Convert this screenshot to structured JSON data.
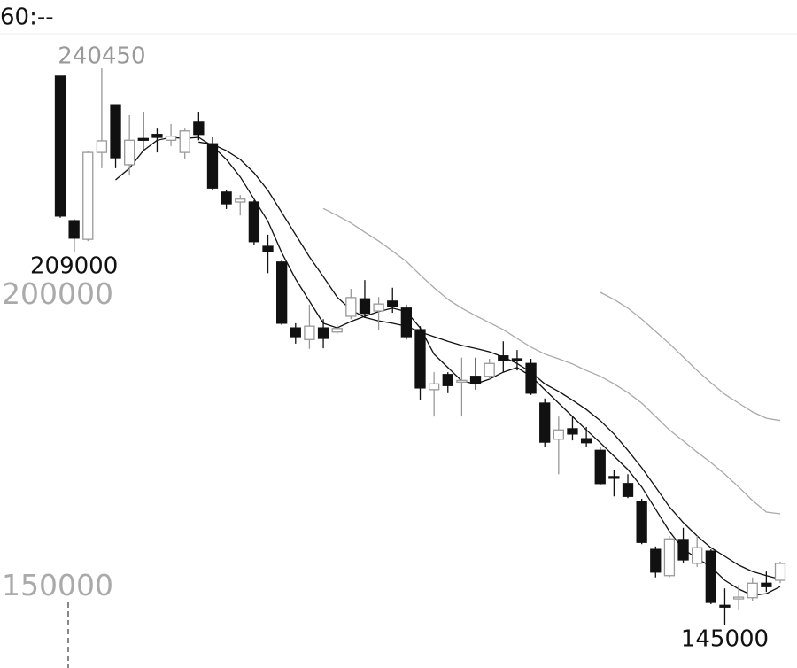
{
  "chart_data": {
    "type": "candlestick",
    "title": "60:--",
    "ylim": [
      139680,
      246080
    ],
    "yticks": [
      150000,
      200000
    ],
    "up_color": "#999999",
    "down_color": "#111111",
    "open": [
      239100,
      214300,
      211100,
      226000,
      234200,
      223900,
      228400,
      229100,
      228100,
      226000,
      231200,
      227500,
      219200,
      217500,
      217500,
      209900,
      207200,
      195900,
      193900,
      195900,
      195200,
      197900,
      200900,
      198800,
      200500,
      199300,
      195600,
      185300,
      187900,
      186600,
      187600,
      187600,
      191100,
      190600,
      189800,
      183000,
      176800,
      178600,
      176900,
      174900,
      170400,
      169200,
      166100,
      157900,
      153400,
      159600,
      155500,
      157600,
      148300,
      149400,
      149600,
      152100,
      152600
    ],
    "high": [
      239100,
      214600,
      226300,
      240450,
      234200,
      232400,
      233000,
      230100,
      230900,
      230100,
      233000,
      228600,
      219500,
      218700,
      217800,
      211900,
      207500,
      196700,
      199900,
      197400,
      196400,
      202600,
      204100,
      201200,
      202800,
      199900,
      196200,
      188300,
      188300,
      190800,
      190800,
      190600,
      193600,
      192100,
      190600,
      183800,
      180700,
      180700,
      178900,
      175400,
      171600,
      170800,
      166600,
      158400,
      160200,
      161600,
      160200,
      157900,
      151200,
      151800,
      153100,
      154100,
      155800
    ],
    "low": [
      214800,
      209000,
      210800,
      223300,
      223300,
      222100,
      226300,
      226000,
      227100,
      224800,
      228100,
      219500,
      216300,
      215200,
      210200,
      205300,
      196400,
      193200,
      192300,
      192400,
      194900,
      197400,
      197600,
      195600,
      198500,
      193900,
      183500,
      180700,
      184700,
      180700,
      185300,
      187100,
      188300,
      188600,
      184400,
      175400,
      170800,
      176600,
      175400,
      168900,
      167000,
      166700,
      158800,
      153100,
      153100,
      155500,
      154900,
      148500,
      145000,
      147600,
      149100,
      150600,
      152100
    ],
    "close": [
      215100,
      211300,
      226000,
      228000,
      225100,
      228100,
      228100,
      228600,
      228800,
      229700,
      229100,
      219900,
      217200,
      218000,
      210700,
      209000,
      196700,
      194400,
      196200,
      194100,
      195800,
      201100,
      198400,
      200000,
      199600,
      194400,
      185600,
      186300,
      186000,
      186900,
      186300,
      189800,
      190300,
      190300,
      184700,
      176300,
      178400,
      177700,
      176200,
      169200,
      170100,
      167000,
      159100,
      154000,
      159700,
      156100,
      158200,
      148800,
      148000,
      149700,
      152100,
      151500,
      155500
    ],
    "lines": [
      {
        "color": "#111111",
        "values": [
          null,
          null,
          null,
          null,
          221300,
          223300,
          226300,
          228100,
          228600,
          228400,
          228600,
          227100,
          224800,
          221800,
          218000,
          214200,
          208800,
          204300,
          200500,
          196700,
          195900,
          197000,
          197900,
          198700,
          199300,
          198700,
          195900,
          191400,
          189100,
          186800,
          186300,
          187100,
          188300,
          189100,
          187600,
          185300,
          183000,
          180700,
          178400,
          176200,
          173900,
          171600,
          168600,
          164800,
          161000,
          157900,
          156400,
          154900,
          152600,
          151100,
          150000,
          150300,
          151500
        ]
      },
      {
        "color": "#111111",
        "values": [
          null,
          null,
          null,
          null,
          null,
          null,
          null,
          null,
          null,
          null,
          227800,
          227400,
          226300,
          224800,
          222500,
          219500,
          215700,
          211900,
          208100,
          204700,
          201200,
          199000,
          197700,
          197100,
          196700,
          196200,
          195200,
          194400,
          193600,
          192900,
          192400,
          191800,
          190900,
          189800,
          188300,
          186300,
          185000,
          183500,
          181900,
          180000,
          177700,
          174900,
          171900,
          168600,
          165200,
          162500,
          160200,
          158200,
          156700,
          155200,
          154100,
          153400,
          152800
        ]
      },
      {
        "color": "#aaaaaa",
        "values": [
          null,
          null,
          null,
          null,
          null,
          null,
          null,
          null,
          null,
          null,
          null,
          null,
          null,
          null,
          null,
          null,
          null,
          null,
          null,
          216400,
          215200,
          213900,
          212300,
          210800,
          209100,
          207300,
          205000,
          202800,
          200800,
          199300,
          198000,
          196800,
          195600,
          194100,
          192600,
          191400,
          190600,
          189700,
          188600,
          187600,
          186300,
          184800,
          183000,
          180700,
          178400,
          176500,
          174600,
          172800,
          170800,
          168600,
          166300,
          164300,
          164000
        ]
      },
      {
        "color": "#aaaaaa",
        "values": [
          null,
          null,
          null,
          null,
          null,
          null,
          null,
          null,
          null,
          null,
          null,
          null,
          null,
          null,
          null,
          null,
          null,
          null,
          null,
          null,
          null,
          null,
          null,
          null,
          null,
          null,
          null,
          null,
          null,
          null,
          null,
          null,
          null,
          null,
          null,
          null,
          null,
          null,
          null,
          202000,
          200800,
          199300,
          197400,
          195300,
          193200,
          190900,
          188600,
          186500,
          184500,
          183000,
          181500,
          180400,
          180000
        ]
      }
    ],
    "annotations": [
      240450,
      209000,
      145000
    ]
  }
}
